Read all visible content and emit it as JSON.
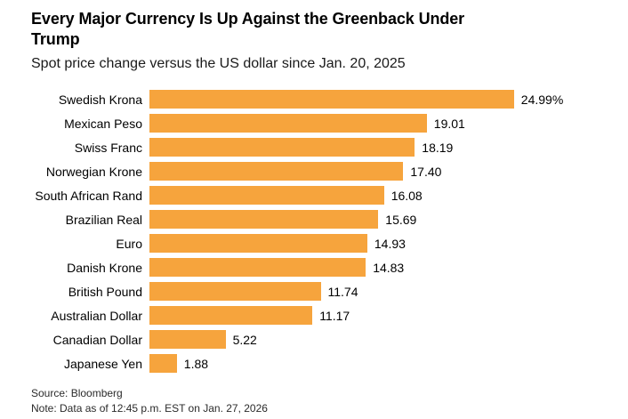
{
  "header": {
    "title": "Every Major Currency Is Up Against the Greenback Under\nTrump",
    "subtitle": "Spot price change versus the US dollar since Jan. 20, 2025"
  },
  "chart_data": {
    "type": "bar",
    "orientation": "horizontal",
    "title": "Every Major Currency Is Up Against the Greenback Under Trump",
    "subtitle": "Spot price change versus the US dollar since Jan. 20, 2025",
    "categories": [
      "Swedish Krona",
      "Mexican Peso",
      "Swiss Franc",
      "Norwegian Krone",
      "South African Rand",
      "Brazilian Real",
      "Euro",
      "Danish Krone",
      "British Pound",
      "Australian Dollar",
      "Canadian Dollar",
      "Japanese Yen"
    ],
    "values": [
      24.99,
      19.01,
      18.19,
      17.4,
      16.08,
      15.69,
      14.93,
      14.83,
      11.74,
      11.17,
      5.22,
      1.88
    ],
    "value_labels": [
      "24.99%",
      "19.01",
      "18.19",
      "17.40",
      "16.08",
      "15.69",
      "14.93",
      "14.83",
      "11.74",
      "11.17",
      "5.22",
      "1.88"
    ],
    "unit": "%",
    "xlim": [
      0,
      25
    ],
    "bar_color": "#F6A43D",
    "grid": false,
    "legend": false
  },
  "footer": {
    "source": "Source: Bloomberg",
    "note": "Note: Data as of 12:45 p.m. EST on Jan. 27, 2026"
  }
}
